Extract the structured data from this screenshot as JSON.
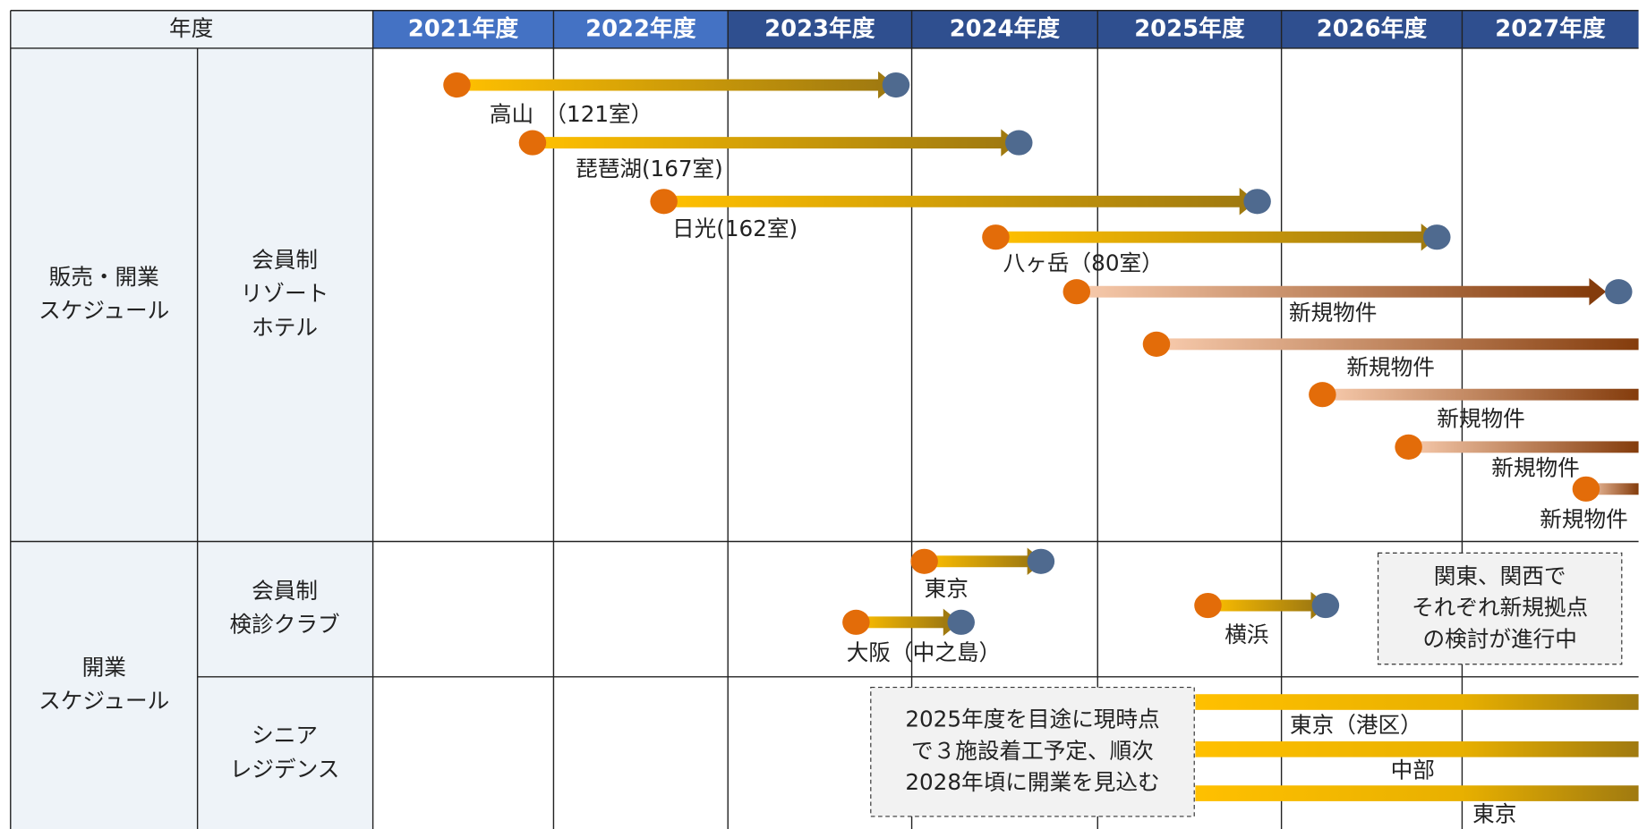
{
  "header": {
    "label": "年度",
    "years": [
      "2021年度",
      "2022年度",
      "2023年度",
      "2024年度",
      "2025年度",
      "2026年度",
      "2027年度"
    ]
  },
  "groups": [
    {
      "title": [
        "販売・開業",
        "スケジュール"
      ],
      "sections": [
        {
          "title": [
            "会員制",
            "リゾート",
            "ホテル"
          ],
          "items": [
            "高山　（121室）",
            "琵琶湖(167室)",
            "日光(162室)",
            "八ヶ岳（80室）",
            "新規物件",
            "新規物件",
            "新規物件",
            "新規物件",
            "新規物件"
          ]
        }
      ]
    },
    {
      "title": [
        "開業",
        "スケジュール"
      ],
      "sections": [
        {
          "title": [
            "会員制",
            "検診クラブ"
          ],
          "items": [
            "東京",
            "大阪（中之島）",
            "横浜"
          ],
          "note": [
            "関東、関西で",
            "それぞれ新規拠点",
            "の検討が進行中"
          ]
        },
        {
          "title": [
            "シニア",
            "レジデンス"
          ],
          "items": [
            "東京（港区）",
            "中部",
            "東京"
          ],
          "note": [
            "2025年度を目途に現時点",
            "で３施設着工予定、順次",
            "2028年頃に開業を見込む"
          ]
        }
      ]
    }
  ]
}
